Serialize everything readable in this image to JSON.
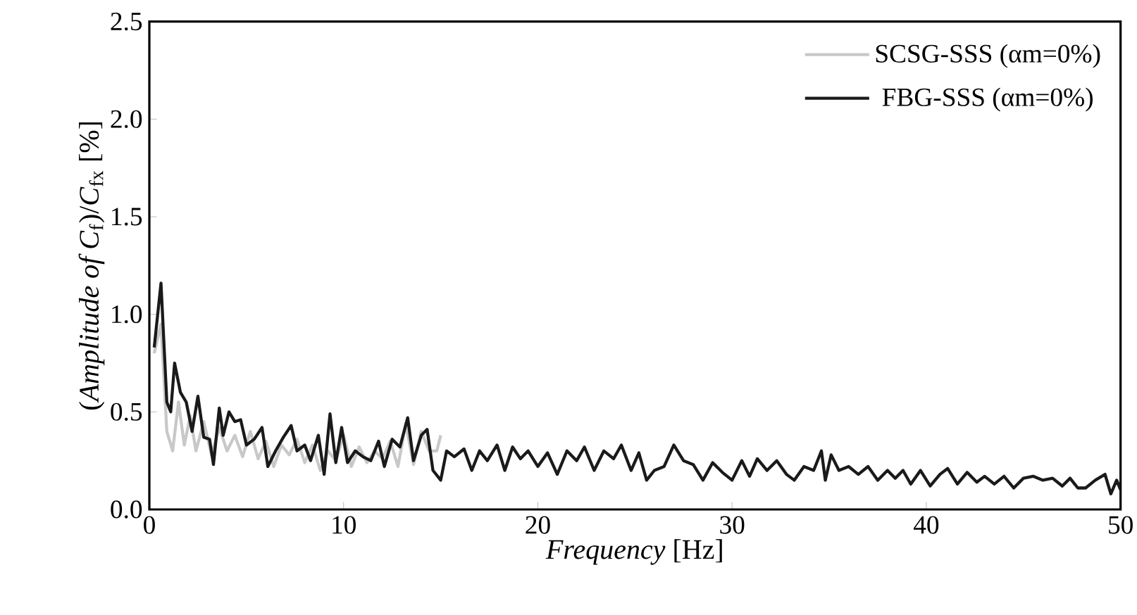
{
  "chart_data": {
    "type": "line",
    "xlabel": "*Frequency* [Hz]",
    "ylabel": "(*Amplitude of C*$_{f}$)/*C*$_{fx}$ [%]",
    "xlim": [
      0,
      50
    ],
    "xticks": [
      0,
      10,
      20,
      30,
      40,
      50
    ],
    "ylim": [
      0,
      2.5
    ],
    "yticks": [
      {
        "value": 0,
        "label": "0.0"
      },
      {
        "value": 0.5,
        "label": "0.5"
      },
      {
        "value": 1,
        "label": "1.0"
      },
      {
        "value": 1.5,
        "label": "1.5"
      },
      {
        "value": 2,
        "label": "2.0"
      },
      {
        "value": 2.5,
        "label": "2.5"
      }
    ],
    "legend": "top right",
    "grid": false,
    "marker": "none",
    "line_style": "solid",
    "series": [
      {
        "name": "SCSG-SSS (αm=0%)",
        "color": "#c8c8c8",
        "x": [
          0.25,
          0.6,
          0.9,
          1.2,
          1.5,
          1.8,
          2.1,
          2.4,
          2.8,
          3.2,
          3.6,
          4.0,
          4.4,
          4.8,
          5.2,
          5.6,
          6.0,
          6.4,
          6.8,
          7.2,
          7.6,
          8.0,
          8.4,
          8.8,
          9.2,
          9.6,
          10.0,
          10.4,
          10.8,
          11.2,
          11.6,
          12.0,
          12.4,
          12.8,
          13.2,
          13.6,
          14.0,
          14.4,
          14.8,
          15.0
        ],
        "values": [
          0.8,
          0.95,
          0.4,
          0.3,
          0.55,
          0.33,
          0.48,
          0.3,
          0.45,
          0.28,
          0.42,
          0.3,
          0.38,
          0.27,
          0.4,
          0.26,
          0.35,
          0.22,
          0.33,
          0.28,
          0.36,
          0.24,
          0.33,
          0.2,
          0.3,
          0.25,
          0.38,
          0.22,
          0.32,
          0.24,
          0.3,
          0.26,
          0.35,
          0.22,
          0.44,
          0.23,
          0.4,
          0.3,
          0.3,
          0.38
        ]
      },
      {
        "name": "FBG-SSS (αm=0%)",
        "color": "#1a1a1a",
        "x": [
          0.25,
          0.6,
          0.9,
          1.1,
          1.3,
          1.6,
          1.9,
          2.2,
          2.5,
          2.8,
          3.1,
          3.3,
          3.6,
          3.8,
          4.1,
          4.4,
          4.7,
          5.0,
          5.4,
          5.8,
          6.1,
          6.5,
          6.9,
          7.3,
          7.6,
          8.0,
          8.3,
          8.7,
          9.0,
          9.3,
          9.6,
          9.9,
          10.2,
          10.6,
          11.0,
          11.4,
          11.8,
          12.1,
          12.5,
          12.9,
          13.3,
          13.6,
          14.0,
          14.3,
          14.6,
          15.0,
          15.3,
          15.7,
          16.2,
          16.6,
          17.0,
          17.4,
          17.9,
          18.3,
          18.7,
          19.1,
          19.5,
          20.0,
          20.5,
          21.0,
          21.5,
          22.0,
          22.4,
          22.9,
          23.4,
          23.9,
          24.3,
          24.8,
          25.2,
          25.6,
          26.0,
          26.5,
          27.0,
          27.5,
          28.0,
          28.5,
          29.0,
          29.5,
          30.0,
          30.5,
          30.9,
          31.3,
          31.8,
          32.3,
          32.8,
          33.2,
          33.7,
          34.2,
          34.6,
          34.8,
          35.1,
          35.5,
          36.0,
          36.5,
          37.0,
          37.5,
          38.0,
          38.4,
          38.8,
          39.2,
          39.7,
          40.2,
          40.7,
          41.1,
          41.6,
          42.1,
          42.6,
          43.0,
          43.5,
          44.0,
          44.5,
          45.0,
          45.5,
          46.0,
          46.5,
          47.0,
          47.4,
          47.8,
          48.2,
          48.7,
          49.2,
          49.5,
          49.8,
          50
        ],
        "values": [
          0.83,
          1.16,
          0.55,
          0.5,
          0.75,
          0.6,
          0.55,
          0.4,
          0.58,
          0.37,
          0.36,
          0.23,
          0.52,
          0.38,
          0.5,
          0.45,
          0.46,
          0.33,
          0.36,
          0.42,
          0.22,
          0.3,
          0.37,
          0.43,
          0.3,
          0.33,
          0.25,
          0.38,
          0.18,
          0.49,
          0.24,
          0.42,
          0.24,
          0.3,
          0.27,
          0.25,
          0.35,
          0.22,
          0.36,
          0.32,
          0.47,
          0.25,
          0.38,
          0.41,
          0.2,
          0.15,
          0.3,
          0.27,
          0.31,
          0.2,
          0.3,
          0.25,
          0.33,
          0.2,
          0.32,
          0.26,
          0.3,
          0.22,
          0.29,
          0.18,
          0.3,
          0.25,
          0.32,
          0.2,
          0.3,
          0.26,
          0.33,
          0.2,
          0.29,
          0.15,
          0.2,
          0.22,
          0.33,
          0.25,
          0.23,
          0.15,
          0.24,
          0.19,
          0.15,
          0.25,
          0.17,
          0.26,
          0.2,
          0.25,
          0.18,
          0.15,
          0.22,
          0.2,
          0.3,
          0.15,
          0.28,
          0.2,
          0.22,
          0.18,
          0.22,
          0.15,
          0.2,
          0.16,
          0.2,
          0.13,
          0.2,
          0.12,
          0.18,
          0.21,
          0.13,
          0.19,
          0.14,
          0.17,
          0.13,
          0.17,
          0.11,
          0.16,
          0.17,
          0.15,
          0.16,
          0.12,
          0.16,
          0.11,
          0.11,
          0.15,
          0.18,
          0.08,
          0.15,
          0.1
        ]
      }
    ]
  }
}
